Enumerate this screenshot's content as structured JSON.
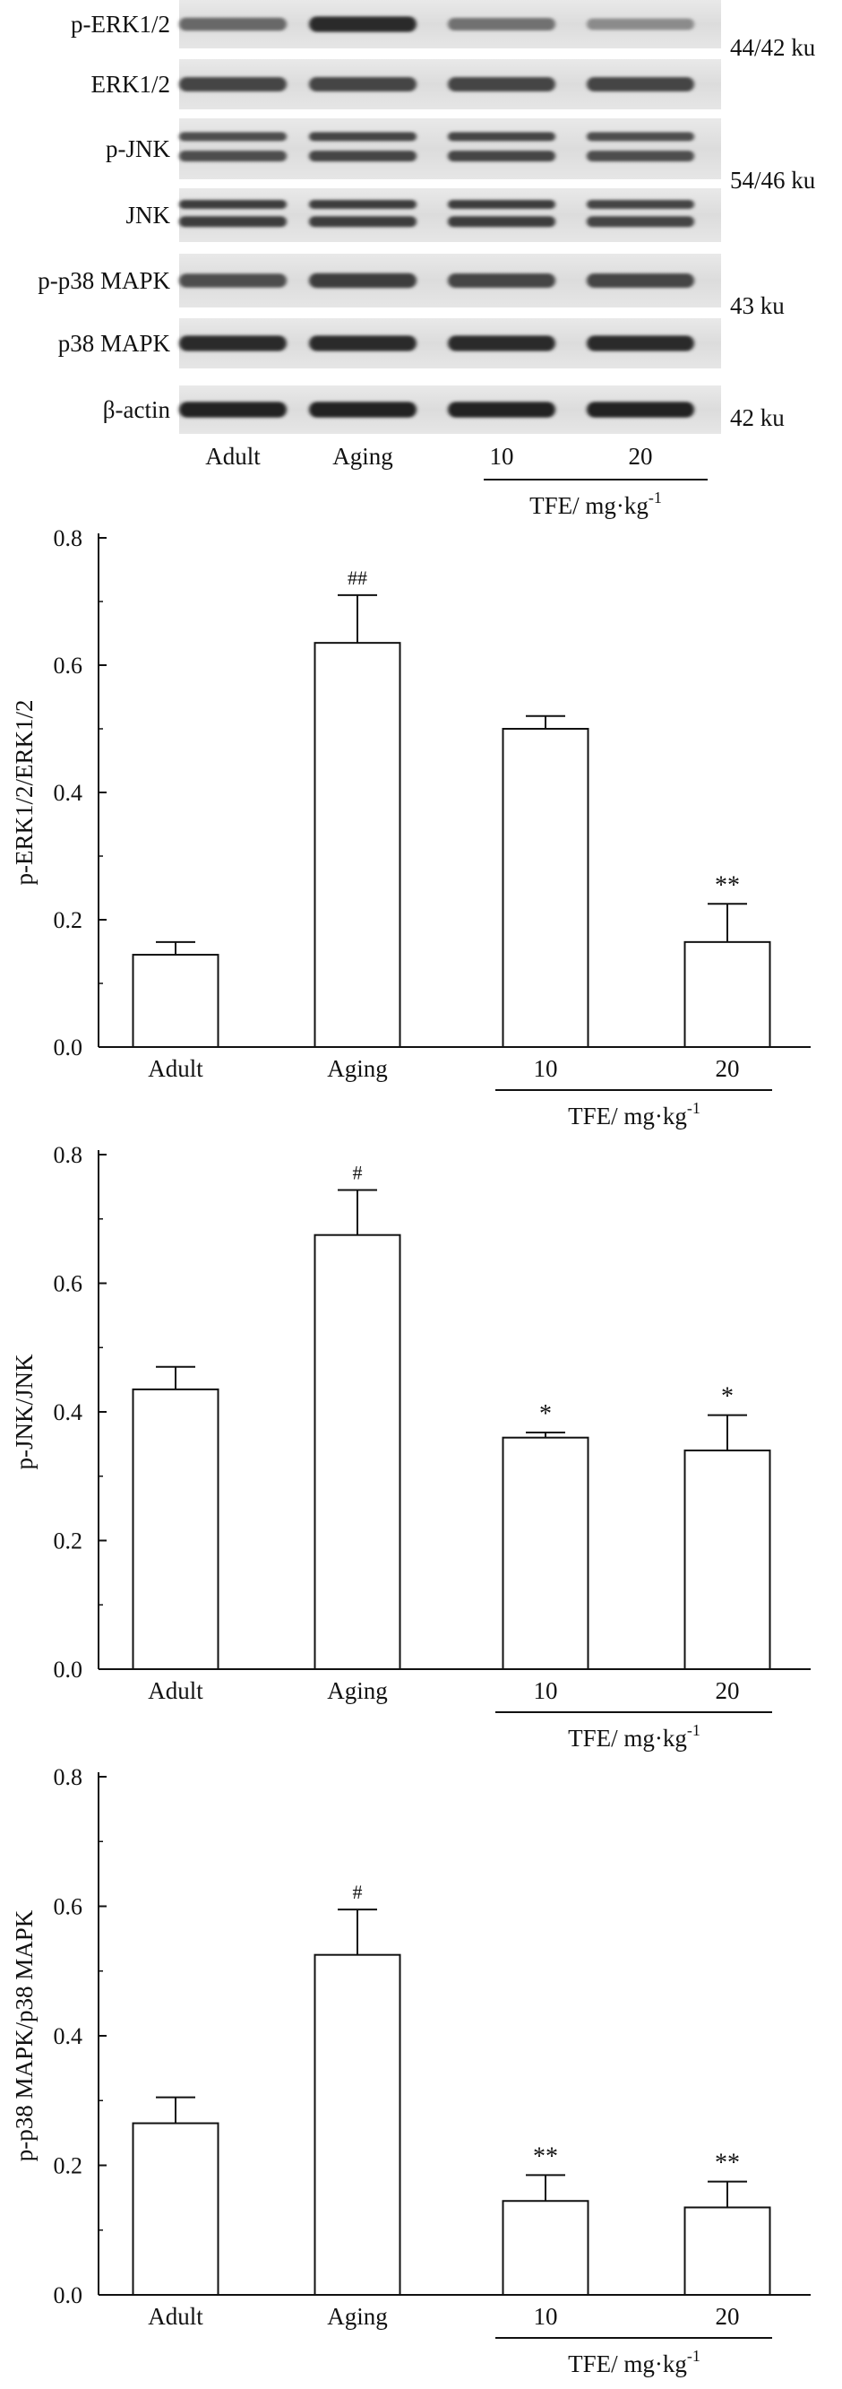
{
  "western_blot": {
    "rows": [
      {
        "label": "p-ERK1/2",
        "intensities": [
          0.55,
          0.9,
          0.5,
          0.35
        ]
      },
      {
        "label": "ERK1/2",
        "intensities": [
          0.75,
          0.75,
          0.75,
          0.75
        ]
      },
      {
        "label": "p-JNK",
        "intensities": [
          0.7,
          0.75,
          0.75,
          0.7
        ]
      },
      {
        "label": "JNK",
        "intensities": [
          0.8,
          0.8,
          0.8,
          0.75
        ]
      },
      {
        "label": "p-p38 MAPK",
        "intensities": [
          0.7,
          0.8,
          0.75,
          0.75
        ]
      },
      {
        "label": "p38 MAPK",
        "intensities": [
          0.9,
          0.9,
          0.9,
          0.9
        ]
      },
      {
        "label": "β-actin",
        "intensities": [
          0.95,
          0.95,
          0.95,
          0.95
        ]
      }
    ],
    "size_labels": [
      "44/42 ku",
      "54/46 ku",
      "43 ku",
      "42 ku"
    ],
    "lane_labels": [
      "Adult",
      "Aging",
      "10",
      "20"
    ],
    "group_label": "TFE/ mg·kg",
    "group_label_sup": "-1"
  },
  "chart_data": [
    {
      "type": "bar",
      "ylabel": "p-ERK1/2/ERK1/2",
      "categories": [
        "Adult",
        "Aging",
        "10",
        "20"
      ],
      "values": [
        0.145,
        0.635,
        0.5,
        0.165
      ],
      "errors": [
        0.02,
        0.075,
        0.02,
        0.06
      ],
      "annotations": [
        "",
        "##",
        "",
        "**"
      ],
      "ylim": [
        0,
        0.8
      ],
      "yticks": [
        "0.0",
        "0.2",
        "0.4",
        "0.6",
        "0.8"
      ],
      "group_label": "TFE/ mg·kg",
      "group_label_sup": "-1"
    },
    {
      "type": "bar",
      "ylabel": "p-JNK/JNK",
      "categories": [
        "Adult",
        "Aging",
        "10",
        "20"
      ],
      "values": [
        0.435,
        0.675,
        0.36,
        0.34
      ],
      "errors": [
        0.035,
        0.07,
        0.008,
        0.055
      ],
      "annotations": [
        "",
        "#",
        "*",
        "*"
      ],
      "ylim": [
        0,
        0.8
      ],
      "yticks": [
        "0.0",
        "0.2",
        "0.4",
        "0.6",
        "0.8"
      ],
      "group_label": "TFE/ mg·kg",
      "group_label_sup": "-1"
    },
    {
      "type": "bar",
      "ylabel": "p-p38 MAPK/p38 MAPK",
      "categories": [
        "Adult",
        "Aging",
        "10",
        "20"
      ],
      "values": [
        0.265,
        0.525,
        0.145,
        0.135
      ],
      "errors": [
        0.04,
        0.07,
        0.04,
        0.04
      ],
      "annotations": [
        "",
        "#",
        "**",
        "**"
      ],
      "ylim": [
        0,
        0.8
      ],
      "yticks": [
        "0.0",
        "0.2",
        "0.4",
        "0.6",
        "0.8"
      ],
      "group_label": "TFE/ mg·kg",
      "group_label_sup": "-1"
    }
  ]
}
